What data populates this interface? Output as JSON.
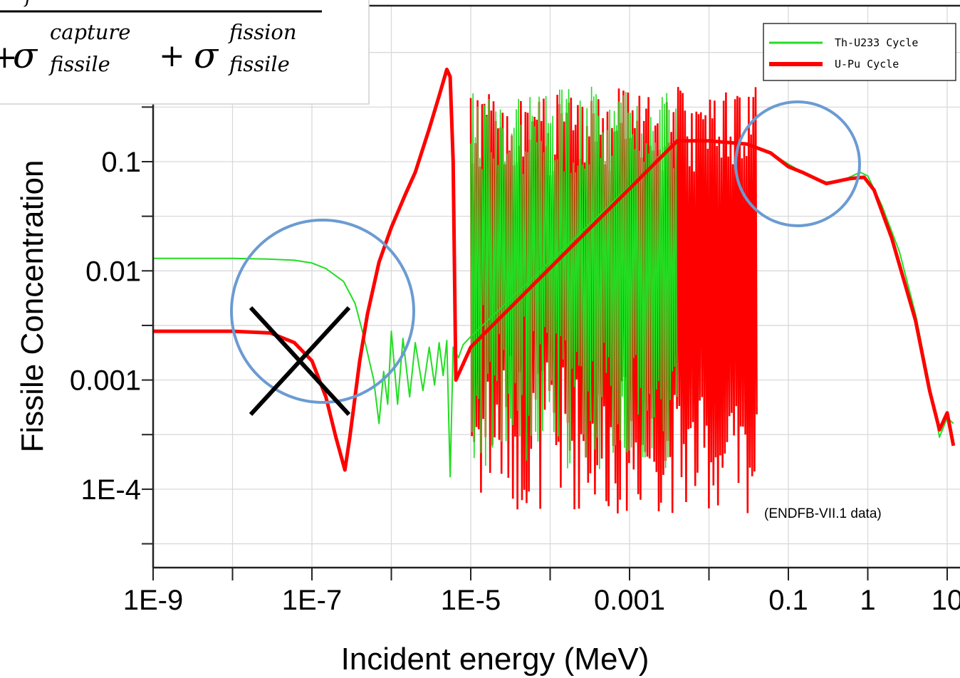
{
  "chart_data": {
    "type": "line",
    "xlabel": "Incident energy (MeV)",
    "ylabel": "Fissile Concentration",
    "x_scale": "log",
    "y_scale": "log",
    "xlim": [
      1e-09,
      12
    ],
    "ylim": [
      2.5e-05,
      1.5
    ],
    "x_ticks": [
      {
        "value": 1e-09,
        "label": "1E-9"
      },
      {
        "value": 1e-07,
        "label": "1E-7"
      },
      {
        "value": 1e-05,
        "label": "1E-5"
      },
      {
        "value": 0.001,
        "label": "0.001"
      },
      {
        "value": 0.1,
        "label": "0.1"
      },
      {
        "value": 1,
        "label": "1"
      },
      {
        "value": 10,
        "label": "10"
      }
    ],
    "y_ticks": [
      {
        "value": 0.1,
        "label": "0.1"
      },
      {
        "value": 0.01,
        "label": "0.01"
      },
      {
        "value": 0.001,
        "label": "0.001"
      },
      {
        "value": 0.0001,
        "label": "1E-4"
      }
    ],
    "grid": true,
    "legend_position": "top-right",
    "annotation": "(ENDFB-VII.1 data)",
    "formula": {
      "sigma": "σ",
      "plus": "+",
      "capture_sup": "capture",
      "fission_sup": "fission",
      "sub": "fissile"
    },
    "series": [
      {
        "name": "Th-U233 Cycle",
        "color": "#22dd22",
        "points": [
          [
            1e-09,
            0.013
          ],
          [
            3e-09,
            0.013
          ],
          [
            1e-08,
            0.013
          ],
          [
            3e-08,
            0.0128
          ],
          [
            6e-08,
            0.0125
          ],
          [
            1e-07,
            0.0118
          ],
          [
            1.5e-07,
            0.0105
          ],
          [
            2.5e-07,
            0.008
          ],
          [
            3.5e-07,
            0.005
          ],
          [
            4.5e-07,
            0.0025
          ],
          [
            6e-07,
            0.001
          ],
          [
            7e-07,
            0.0004
          ],
          [
            8e-07,
            0.0012
          ],
          [
            9e-07,
            0.0006
          ],
          [
            1e-06,
            0.0028
          ],
          [
            1.2e-06,
            0.0006
          ],
          [
            1.4e-06,
            0.0024
          ],
          [
            1.7e-06,
            0.0007
          ],
          [
            2e-06,
            0.0022
          ],
          [
            2.5e-06,
            0.0008
          ],
          [
            3e-06,
            0.002
          ],
          [
            3.5e-06,
            0.0009
          ],
          [
            4e-06,
            0.0022
          ],
          [
            4.5e-06,
            0.0011
          ],
          [
            5e-06,
            0.0023
          ],
          [
            5.5e-06,
            0.00013
          ],
          [
            6e-06,
            0.002
          ],
          [
            7e-06,
            0.0016
          ],
          [
            8e-06,
            0.0021
          ],
          [
            1e-05,
            0.0025
          ],
          [
            0.004,
            0.155
          ],
          [
            0.01,
            0.155
          ],
          [
            0.03,
            0.145
          ],
          [
            0.06,
            0.12
          ],
          [
            0.1,
            0.095
          ],
          [
            0.15,
            0.08
          ],
          [
            0.3,
            0.065
          ],
          [
            0.5,
            0.068
          ],
          [
            0.8,
            0.08
          ],
          [
            1,
            0.074
          ],
          [
            1.5,
            0.04
          ],
          [
            2.5,
            0.015
          ],
          [
            4,
            0.004
          ],
          [
            6,
            0.0009
          ],
          [
            8,
            0.0003
          ],
          [
            10,
            0.00045
          ],
          [
            12,
            0.0004
          ]
        ],
        "band": {
          "x_start": 1e-05,
          "x_end": 0.004,
          "low": 0.00015,
          "high": 0.5
        }
      },
      {
        "name": "U-Pu Cycle",
        "color": "#ff0000",
        "points": [
          [
            1e-09,
            0.0028
          ],
          [
            1e-08,
            0.0028
          ],
          [
            3e-08,
            0.0027
          ],
          [
            6e-08,
            0.0022
          ],
          [
            1e-07,
            0.0015
          ],
          [
            1.5e-07,
            0.0007
          ],
          [
            2e-07,
            0.0003
          ],
          [
            2.6e-07,
            0.00015
          ],
          [
            3e-07,
            0.0003
          ],
          [
            4e-07,
            0.0015
          ],
          [
            5e-07,
            0.004
          ],
          [
            7e-07,
            0.012
          ],
          [
            1e-06,
            0.025
          ],
          [
            1.5e-06,
            0.05
          ],
          [
            2e-06,
            0.08
          ],
          [
            3e-06,
            0.2
          ],
          [
            4e-06,
            0.4
          ],
          [
            5e-06,
            0.7
          ],
          [
            5.5e-06,
            0.6
          ],
          [
            6e-06,
            0.1
          ],
          [
            6.5e-06,
            0.001
          ],
          [
            1e-05,
            0.002
          ],
          [
            0.004,
            0.155
          ],
          [
            0.01,
            0.155
          ],
          [
            0.03,
            0.145
          ],
          [
            0.06,
            0.12
          ],
          [
            0.1,
            0.09
          ],
          [
            0.15,
            0.08
          ],
          [
            0.3,
            0.063
          ],
          [
            0.6,
            0.07
          ],
          [
            0.9,
            0.072
          ],
          [
            1.2,
            0.055
          ],
          [
            2,
            0.02
          ],
          [
            4,
            0.0035
          ],
          [
            6,
            0.0008
          ],
          [
            8,
            0.00035
          ],
          [
            10,
            0.0005
          ],
          [
            12,
            0.00025
          ]
        ],
        "band": {
          "x_start": 1e-05,
          "x_end": 0.04,
          "low": 6e-05,
          "high": 0.5
        }
      }
    ]
  }
}
